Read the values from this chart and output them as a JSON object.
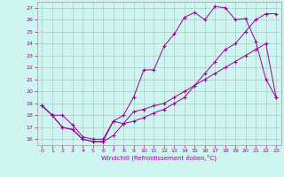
{
  "xlabel": "Windchill (Refroidissement éolien,°C)",
  "bg_color": "#cef5f0",
  "grid_color": "#b0c8c8",
  "line_color": "#990099",
  "xlim": [
    -0.5,
    23.5
  ],
  "ylim": [
    15.5,
    27.5
  ],
  "yticks": [
    16,
    17,
    18,
    19,
    20,
    21,
    22,
    23,
    24,
    25,
    26,
    27
  ],
  "xticks": [
    0,
    1,
    2,
    3,
    4,
    5,
    6,
    7,
    8,
    9,
    10,
    11,
    12,
    13,
    14,
    15,
    16,
    17,
    18,
    19,
    20,
    21,
    22,
    23
  ],
  "line1_x": [
    0,
    1,
    2,
    3,
    4,
    5,
    6,
    7,
    8,
    9,
    10,
    11,
    12,
    13,
    14,
    15,
    16,
    17,
    18,
    19,
    20,
    21,
    22,
    23
  ],
  "line1_y": [
    18.8,
    18.0,
    17.0,
    16.8,
    16.0,
    15.8,
    15.8,
    17.5,
    18.0,
    19.5,
    21.8,
    21.8,
    23.8,
    24.8,
    26.2,
    26.6,
    26.0,
    27.1,
    27.0,
    26.0,
    26.1,
    24.2,
    21.0,
    19.5
  ],
  "line2_x": [
    0,
    1,
    2,
    3,
    4,
    5,
    6,
    7,
    8,
    9,
    10,
    11,
    12,
    13,
    14,
    15,
    16,
    17,
    18,
    19,
    20,
    21,
    22,
    23
  ],
  "line2_y": [
    18.8,
    18.0,
    17.0,
    16.8,
    16.0,
    15.8,
    15.8,
    16.3,
    17.3,
    17.5,
    17.8,
    18.2,
    18.5,
    19.0,
    19.5,
    20.5,
    21.5,
    22.5,
    23.5,
    24.0,
    25.0,
    26.0,
    26.5,
    26.5
  ],
  "line3_x": [
    0,
    1,
    2,
    3,
    4,
    5,
    6,
    7,
    8,
    9,
    10,
    11,
    12,
    13,
    14,
    15,
    16,
    17,
    18,
    19,
    20,
    21,
    22,
    23
  ],
  "line3_y": [
    18.8,
    18.0,
    18.0,
    17.2,
    16.2,
    16.0,
    16.0,
    17.5,
    17.3,
    18.3,
    18.5,
    18.8,
    19.0,
    19.5,
    20.0,
    20.5,
    21.0,
    21.5,
    22.0,
    22.5,
    23.0,
    23.5,
    24.0,
    19.5
  ]
}
